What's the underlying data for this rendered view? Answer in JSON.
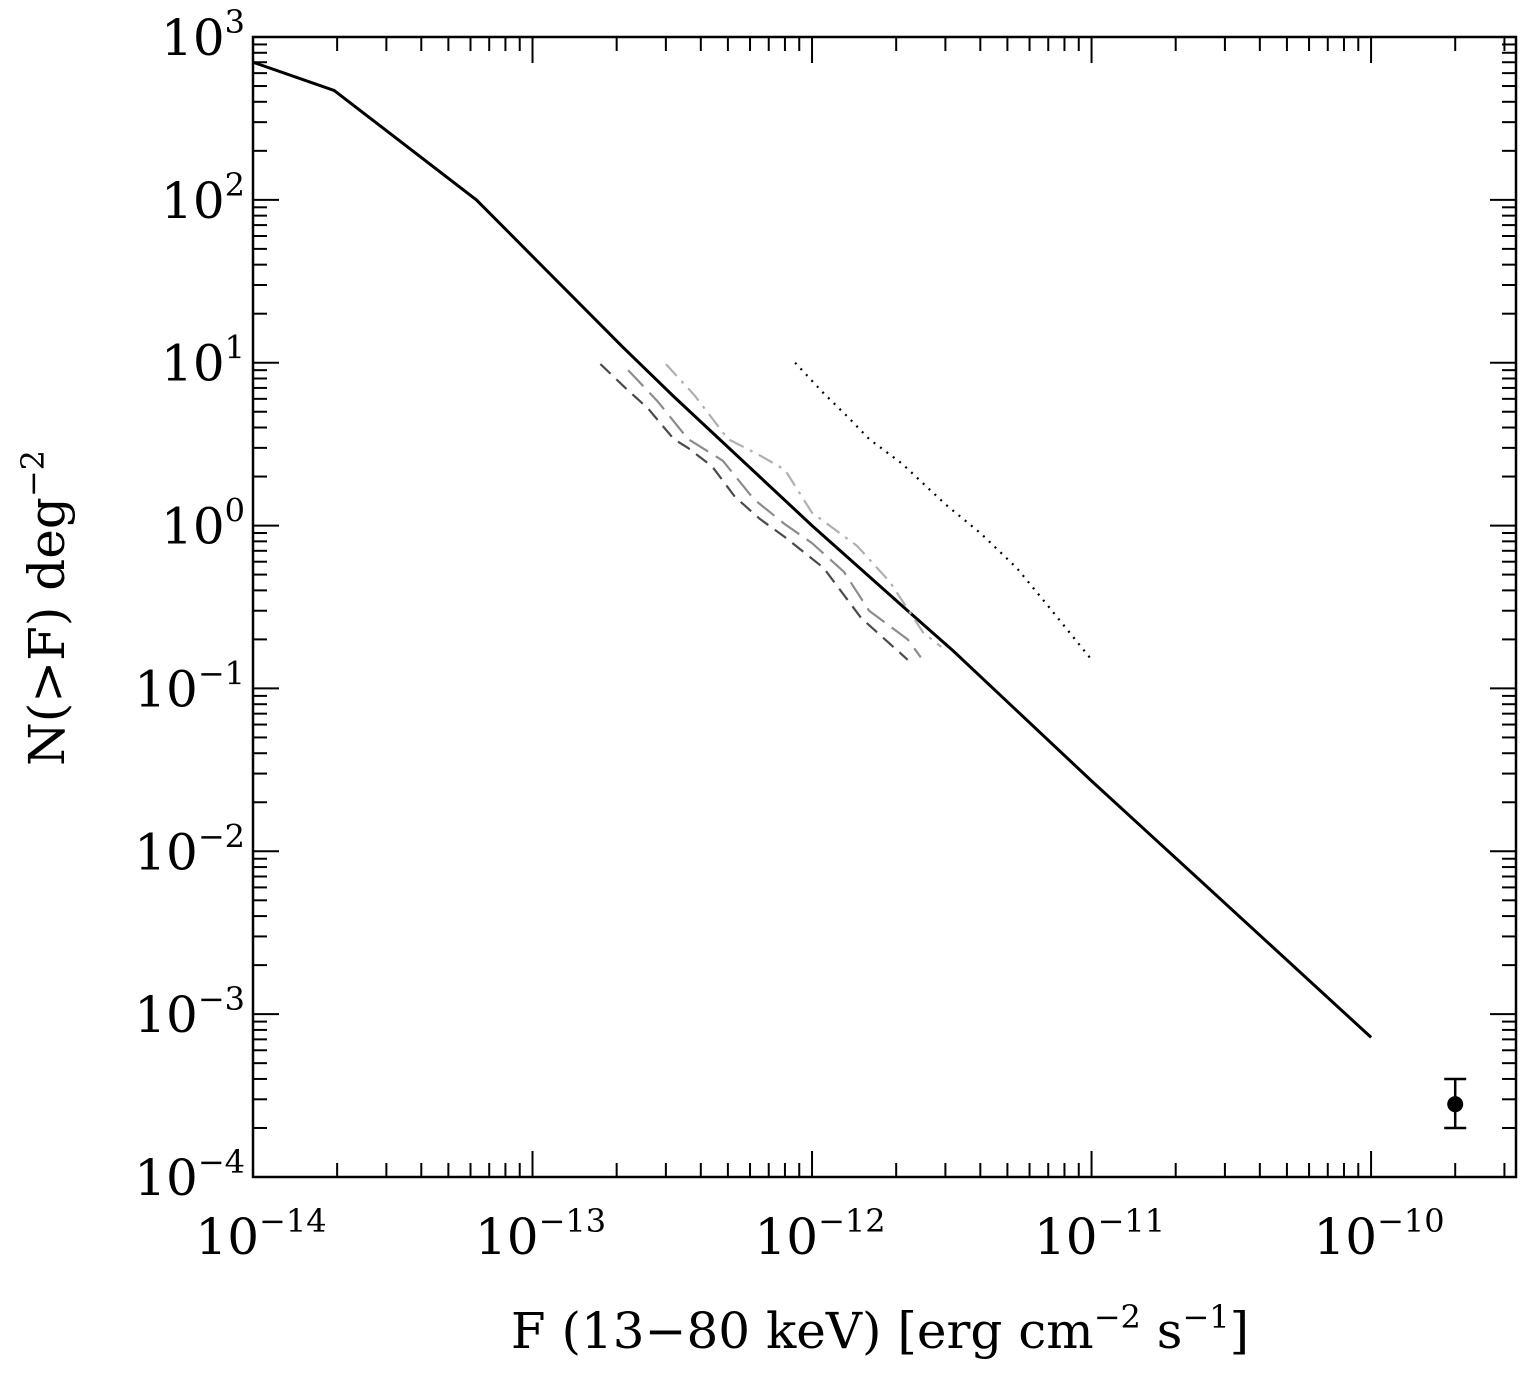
{
  "chart_data": {
    "type": "line",
    "title": "",
    "xlabel": {
      "parts": [
        {
          "text": "F (13−80 keV) [erg cm",
          "sup": false
        },
        {
          "text": "−2",
          "sup": true
        },
        {
          "text": "  s",
          "sup": false
        },
        {
          "text": "−1",
          "sup": true
        },
        {
          "text": "]",
          "sup": false
        }
      ]
    },
    "ylabel": {
      "parts": [
        {
          "text": "N(>F)  deg",
          "sup": false
        },
        {
          "text": "−2",
          "sup": true
        }
      ]
    },
    "x_scale": "log",
    "y_scale": "log",
    "xlim": [
      1e-14,
      3.3e-10
    ],
    "ylim": [
      0.0001,
      1000
    ],
    "x_ticks": [
      {
        "value": 1e-14,
        "base": "10",
        "exp": "−14"
      },
      {
        "value": 1e-13,
        "base": "10",
        "exp": "−13"
      },
      {
        "value": 1e-12,
        "base": "10",
        "exp": "−12"
      },
      {
        "value": 1e-11,
        "base": "10",
        "exp": "−11"
      },
      {
        "value": 1e-10,
        "base": "10",
        "exp": "−10"
      }
    ],
    "y_ticks": [
      {
        "value": 0.0001,
        "base": "10",
        "exp": "−4"
      },
      {
        "value": 0.001,
        "base": "10",
        "exp": "−3"
      },
      {
        "value": 0.01,
        "base": "10",
        "exp": "−2"
      },
      {
        "value": 0.1,
        "base": "10",
        "exp": "−1"
      },
      {
        "value": 1,
        "base": "10",
        "exp": "0"
      },
      {
        "value": 10,
        "base": "10",
        "exp": "1"
      },
      {
        "value": 100,
        "base": "10",
        "exp": "2"
      },
      {
        "value": 1000,
        "base": "10",
        "exp": "3"
      }
    ],
    "grid": false,
    "series": [
      {
        "style": "solid",
        "color": "#000000",
        "points": [
          [
            1e-14,
            700
          ],
          [
            1.95e-14,
            470
          ],
          [
            6.3e-14,
            100
          ],
          [
            2.1e-13,
            12.5
          ],
          [
            3.2e-13,
            6.2
          ],
          [
            1e-12,
            1.0
          ],
          [
            2.2e-12,
            0.3
          ],
          [
            3.2e-12,
            0.17
          ],
          [
            1e-11,
            0.027
          ],
          [
            2.5e-11,
            0.0064
          ],
          [
            1e-10,
            0.00072
          ]
        ]
      },
      {
        "style": "dotted",
        "color": "#000000",
        "points": [
          [
            8.7e-13,
            10
          ],
          [
            1.1e-12,
            6.5
          ],
          [
            1.35e-12,
            4.6
          ],
          [
            1.6e-12,
            3.4
          ],
          [
            2.1e-12,
            2.4
          ],
          [
            3e-12,
            1.35
          ],
          [
            4e-12,
            0.9
          ],
          [
            5.4e-12,
            0.55
          ],
          [
            7e-12,
            0.32
          ],
          [
            1e-11,
            0.15
          ]
        ]
      },
      {
        "style": "dashed",
        "color": "#4a4a4a",
        "points": [
          [
            1.75e-13,
            9.8
          ],
          [
            2.15e-13,
            7.0
          ],
          [
            2.6e-13,
            5.2
          ],
          [
            3.2e-13,
            3.4
          ],
          [
            3.6e-13,
            3.0
          ],
          [
            4.4e-13,
            2.3
          ],
          [
            5.3e-13,
            1.5
          ],
          [
            6.5e-13,
            1.1
          ],
          [
            8e-13,
            0.85
          ],
          [
            1.1e-12,
            0.55
          ],
          [
            1.5e-12,
            0.27
          ],
          [
            2.2e-12,
            0.15
          ]
        ]
      },
      {
        "style": "longdash",
        "color": "#8c8c8c",
        "points": [
          [
            2.2e-13,
            9.0
          ],
          [
            2.8e-13,
            5.8
          ],
          [
            3.6e-13,
            3.4
          ],
          [
            4.8e-13,
            2.5
          ],
          [
            6.2e-13,
            1.45
          ],
          [
            8e-13,
            1.02
          ],
          [
            1e-12,
            0.78
          ],
          [
            1.3e-12,
            0.52
          ],
          [
            1.6e-12,
            0.3
          ],
          [
            2.2e-12,
            0.2
          ],
          [
            2.45e-12,
            0.155
          ]
        ]
      },
      {
        "style": "dashdot",
        "color": "#b0b0b0",
        "points": [
          [
            3e-13,
            9.8
          ],
          [
            3.8e-13,
            6.3
          ],
          [
            5e-13,
            3.4
          ],
          [
            6.5e-13,
            2.7
          ],
          [
            8e-13,
            2.2
          ],
          [
            1e-12,
            1.2
          ],
          [
            1.45e-12,
            0.75
          ],
          [
            1.9e-12,
            0.45
          ],
          [
            2.5e-12,
            0.22
          ],
          [
            2.9e-12,
            0.18
          ]
        ]
      }
    ],
    "error_points": [
      {
        "x": 2e-10,
        "y": 0.00028,
        "y_low": 0.0002,
        "y_high": 0.0004
      }
    ]
  }
}
